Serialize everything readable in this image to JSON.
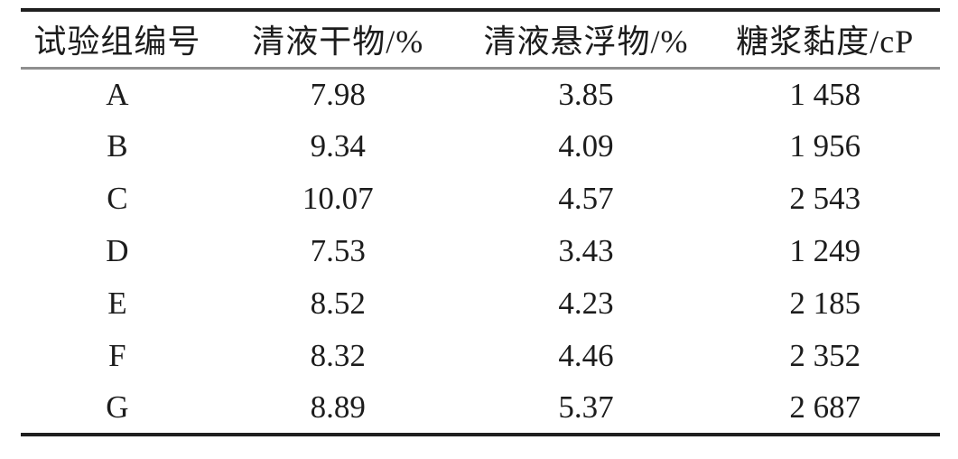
{
  "table": {
    "headers": {
      "group": "试验组编号",
      "dry_matter": "清液干物/%",
      "suspended": "清液悬浮物/%",
      "viscosity": "糖浆黏度/cP"
    },
    "rows": [
      {
        "group": "A",
        "dry_matter": "7.98",
        "suspended": "3.85",
        "viscosity": "1 458"
      },
      {
        "group": "B",
        "dry_matter": "9.34",
        "suspended": "4.09",
        "viscosity": "1 956"
      },
      {
        "group": "C",
        "dry_matter": "10.07",
        "suspended": "4.57",
        "viscosity": "2 543"
      },
      {
        "group": "D",
        "dry_matter": "7.53",
        "suspended": "3.43",
        "viscosity": "1 249"
      },
      {
        "group": "E",
        "dry_matter": "8.52",
        "suspended": "4.23",
        "viscosity": "2 185"
      },
      {
        "group": "F",
        "dry_matter": "8.32",
        "suspended": "4.46",
        "viscosity": "2 352"
      },
      {
        "group": "G",
        "dry_matter": "8.89",
        "suspended": "5.37",
        "viscosity": "2 687"
      }
    ]
  },
  "colors": {
    "rule_heavy": "#1f1f1f",
    "rule_light": "#8f8f8f",
    "text": "#1c1c1c",
    "background": "#ffffff"
  }
}
